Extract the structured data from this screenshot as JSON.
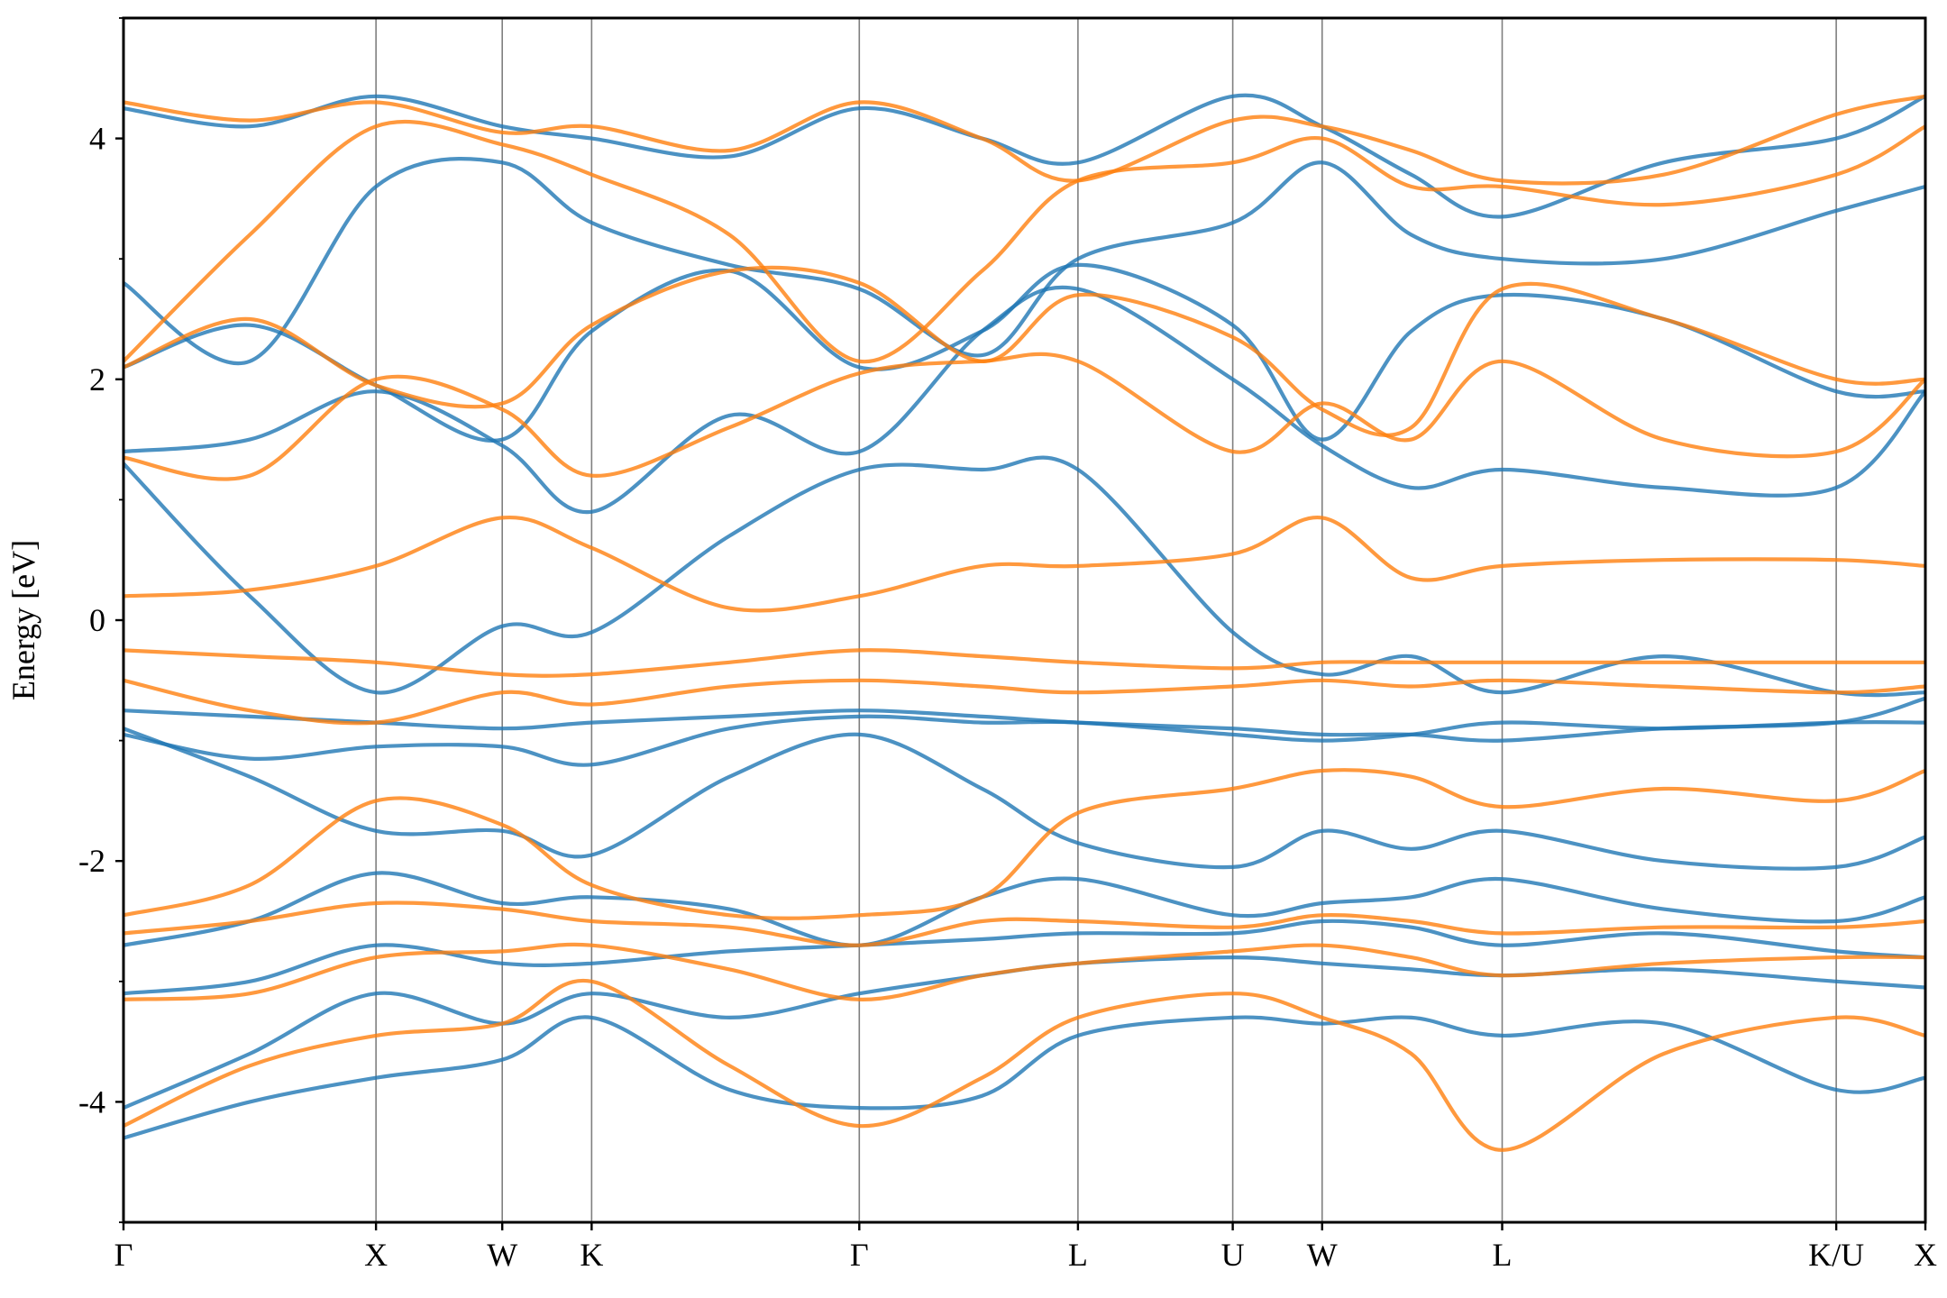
{
  "chart_data": {
    "type": "line",
    "title": "",
    "xlabel": "",
    "ylabel": "Energy [eV]",
    "ylim": [
      -5,
      5
    ],
    "yticks": [
      -4,
      -2,
      0,
      2,
      4
    ],
    "yticks_minor": [
      -5,
      -3,
      -1,
      1,
      3,
      5
    ],
    "grid": false,
    "legend": "none",
    "kpath": {
      "labels": [
        "Γ",
        "X",
        "W",
        "K",
        "Γ",
        "L",
        "U",
        "W",
        "L",
        "K/U",
        "X"
      ],
      "positions": [
        0.0,
        1.0,
        1.5,
        1.854,
        2.914,
        3.78,
        4.393,
        4.747,
        5.46,
        6.783,
        7.136
      ]
    },
    "colors": {
      "series_a": "#1f77b4",
      "series_b": "#ff7f0e",
      "kline": "#7f7f7f",
      "axis": "#000000"
    },
    "series": [
      {
        "color": "#1f77b4",
        "bands": [
          {
            "x": [
              0,
              0.5,
              1.0,
              1.5,
              1.854,
              2.4,
              2.914,
              3.4,
              3.78,
              4.393,
              4.747,
              5.1,
              5.46,
              6.1,
              6.783,
              7.136
            ],
            "y": [
              -4.3,
              -4.0,
              -3.8,
              -3.65,
              -3.3,
              -3.9,
              -4.05,
              -3.95,
              -3.45,
              -3.3,
              -3.35,
              -3.3,
              -3.45,
              -3.35,
              -3.9,
              -3.8
            ]
          },
          {
            "x": [
              0,
              0.5,
              1.0,
              1.5,
              1.854,
              2.4,
              2.914,
              3.4,
              3.78,
              4.393,
              4.747,
              5.1,
              5.46,
              6.1,
              6.783,
              7.136
            ],
            "y": [
              -4.05,
              -3.6,
              -3.1,
              -3.35,
              -3.1,
              -3.3,
              -3.1,
              -2.95,
              -2.85,
              -2.8,
              -2.85,
              -2.9,
              -2.95,
              -2.9,
              -3.0,
              -3.05
            ]
          },
          {
            "x": [
              0,
              0.5,
              1.0,
              1.5,
              1.854,
              2.4,
              2.914,
              3.4,
              3.78,
              4.393,
              4.747,
              5.1,
              5.46,
              6.1,
              6.783,
              7.136
            ],
            "y": [
              -3.1,
              -3.0,
              -2.7,
              -2.85,
              -2.85,
              -2.75,
              -2.7,
              -2.65,
              -2.6,
              -2.6,
              -2.5,
              -2.55,
              -2.7,
              -2.6,
              -2.75,
              -2.8
            ]
          },
          {
            "x": [
              0,
              0.5,
              1.0,
              1.5,
              1.854,
              2.4,
              2.914,
              3.4,
              3.78,
              4.393,
              4.747,
              5.1,
              5.46,
              6.1,
              6.783,
              7.136
            ],
            "y": [
              -2.7,
              -2.5,
              -2.1,
              -2.35,
              -2.3,
              -2.4,
              -2.7,
              -2.3,
              -2.15,
              -2.45,
              -2.35,
              -2.3,
              -2.15,
              -2.4,
              -2.5,
              -2.3
            ]
          },
          {
            "x": [
              0,
              0.5,
              1.0,
              1.5,
              1.854,
              2.4,
              2.914,
              3.4,
              3.78,
              4.393,
              4.747,
              5.1,
              5.46,
              6.1,
              6.783,
              7.136
            ],
            "y": [
              -0.9,
              -1.3,
              -1.75,
              -1.75,
              -1.95,
              -1.3,
              -0.95,
              -1.4,
              -1.85,
              -2.05,
              -1.75,
              -1.9,
              -1.75,
              -2.0,
              -2.05,
              -1.8
            ]
          },
          {
            "x": [
              0,
              0.5,
              1.0,
              1.5,
              1.854,
              2.4,
              2.914,
              3.4,
              3.78,
              4.393,
              4.747,
              5.1,
              5.46,
              6.1,
              6.783,
              7.136
            ],
            "y": [
              -0.95,
              -1.15,
              -1.05,
              -1.05,
              -1.2,
              -0.9,
              -0.8,
              -0.85,
              -0.85,
              -0.95,
              -1.0,
              -0.95,
              -0.85,
              -0.9,
              -0.85,
              -0.85
            ]
          },
          {
            "x": [
              0,
              0.5,
              1.0,
              1.5,
              1.854,
              2.4,
              2.914,
              3.4,
              3.78,
              4.393,
              4.747,
              5.1,
              5.46,
              6.1,
              6.783,
              7.136
            ],
            "y": [
              -0.75,
              -0.8,
              -0.85,
              -0.9,
              -0.85,
              -0.8,
              -0.75,
              -0.8,
              -0.85,
              -0.9,
              -0.95,
              -0.95,
              -1.0,
              -0.9,
              -0.85,
              -0.65
            ]
          },
          {
            "x": [
              0,
              0.5,
              1.0,
              1.5,
              1.854,
              2.4,
              2.914,
              3.4,
              3.78,
              4.393,
              4.747,
              5.1,
              5.46,
              6.1,
              6.783,
              7.136
            ],
            "y": [
              1.3,
              0.2,
              -0.6,
              -0.05,
              -0.1,
              0.7,
              1.25,
              1.25,
              1.25,
              -0.1,
              -0.45,
              -0.3,
              -0.6,
              -0.3,
              -0.6,
              -0.6
            ]
          },
          {
            "x": [
              0,
              0.5,
              1.0,
              1.5,
              1.854,
              2.4,
              2.914,
              3.4,
              3.78,
              4.393,
              4.747,
              5.1,
              5.46,
              6.1,
              6.783,
              7.136
            ],
            "y": [
              1.4,
              1.5,
              1.9,
              1.45,
              0.9,
              1.7,
              1.4,
              2.4,
              2.75,
              2.0,
              1.45,
              1.1,
              1.25,
              1.1,
              1.1,
              1.9
            ]
          },
          {
            "x": [
              0,
              0.5,
              1.0,
              1.5,
              1.854,
              2.4,
              2.914,
              3.4,
              3.78,
              4.393,
              4.747,
              5.1,
              5.46,
              6.1,
              6.783,
              7.136
            ],
            "y": [
              2.1,
              2.45,
              1.95,
              1.5,
              2.4,
              2.9,
              2.1,
              2.4,
              2.95,
              2.45,
              1.5,
              2.4,
              2.7,
              2.5,
              1.9,
              1.9
            ]
          },
          {
            "x": [
              0,
              0.5,
              1.0,
              1.5,
              1.854,
              2.4,
              2.914,
              3.4,
              3.78,
              4.393,
              4.747,
              5.1,
              5.46,
              6.1,
              6.783,
              7.136
            ],
            "y": [
              2.8,
              2.15,
              3.6,
              3.8,
              3.3,
              2.95,
              2.75,
              2.2,
              3.0,
              3.3,
              3.8,
              3.2,
              3.0,
              3.0,
              3.4,
              3.6
            ]
          },
          {
            "x": [
              0,
              0.5,
              1.0,
              1.5,
              1.854,
              2.4,
              2.914,
              3.4,
              3.78,
              4.393,
              4.747,
              5.1,
              5.46,
              6.1,
              6.783,
              7.136
            ],
            "y": [
              4.25,
              4.1,
              4.35,
              4.1,
              4.0,
              3.85,
              4.25,
              4.0,
              3.8,
              4.35,
              4.1,
              3.7,
              3.35,
              3.8,
              4.0,
              4.35
            ]
          }
        ]
      },
      {
        "color": "#ff7f0e",
        "bands": [
          {
            "x": [
              0,
              0.5,
              1.0,
              1.5,
              1.854,
              2.4,
              2.914,
              3.4,
              3.78,
              4.393,
              4.747,
              5.1,
              5.46,
              6.1,
              6.783,
              7.136
            ],
            "y": [
              -4.2,
              -3.7,
              -3.45,
              -3.35,
              -3.0,
              -3.7,
              -4.2,
              -3.8,
              -3.3,
              -3.1,
              -3.3,
              -3.6,
              -4.4,
              -3.6,
              -3.3,
              -3.45
            ]
          },
          {
            "x": [
              0,
              0.5,
              1.0,
              1.5,
              1.854,
              2.4,
              2.914,
              3.4,
              3.78,
              4.393,
              4.747,
              5.1,
              5.46,
              6.1,
              6.783,
              7.136
            ],
            "y": [
              -3.15,
              -3.1,
              -2.8,
              -2.75,
              -2.7,
              -2.9,
              -3.15,
              -2.95,
              -2.85,
              -2.75,
              -2.7,
              -2.8,
              -2.95,
              -2.85,
              -2.8,
              -2.8
            ]
          },
          {
            "x": [
              0,
              0.5,
              1.0,
              1.5,
              1.854,
              2.4,
              2.914,
              3.4,
              3.78,
              4.393,
              4.747,
              5.1,
              5.46,
              6.1,
              6.783,
              7.136
            ],
            "y": [
              -2.6,
              -2.5,
              -2.35,
              -2.4,
              -2.5,
              -2.55,
              -2.7,
              -2.5,
              -2.5,
              -2.55,
              -2.45,
              -2.5,
              -2.6,
              -2.55,
              -2.55,
              -2.5
            ]
          },
          {
            "x": [
              0,
              0.5,
              1.0,
              1.5,
              1.854,
              2.4,
              2.914,
              3.4,
              3.78,
              4.393,
              4.747,
              5.1,
              5.46,
              6.1,
              6.783,
              7.136
            ],
            "y": [
              -2.45,
              -2.2,
              -1.5,
              -1.7,
              -2.2,
              -2.45,
              -2.45,
              -2.3,
              -1.6,
              -1.4,
              -1.25,
              -1.3,
              -1.55,
              -1.4,
              -1.5,
              -1.25
            ]
          },
          {
            "x": [
              0,
              0.5,
              1.0,
              1.5,
              1.854,
              2.4,
              2.914,
              3.4,
              3.78,
              4.393,
              4.747,
              5.1,
              5.46,
              6.1,
              6.783,
              7.136
            ],
            "y": [
              -0.5,
              -0.75,
              -0.85,
              -0.6,
              -0.7,
              -0.55,
              -0.5,
              -0.55,
              -0.6,
              -0.55,
              -0.5,
              -0.55,
              -0.5,
              -0.55,
              -0.6,
              -0.55
            ]
          },
          {
            "x": [
              0,
              0.5,
              1.0,
              1.5,
              1.854,
              2.4,
              2.914,
              3.4,
              3.78,
              4.393,
              4.747,
              5.1,
              5.46,
              6.1,
              6.783,
              7.136
            ],
            "y": [
              -0.25,
              -0.3,
              -0.35,
              -0.45,
              -0.45,
              -0.35,
              -0.25,
              -0.3,
              -0.35,
              -0.4,
              -0.35,
              -0.35,
              -0.35,
              -0.35,
              -0.35,
              -0.35
            ]
          },
          {
            "x": [
              0,
              0.5,
              1.0,
              1.5,
              1.854,
              2.4,
              2.914,
              3.4,
              3.78,
              4.393,
              4.747,
              5.1,
              5.46,
              6.1,
              6.783,
              7.136
            ],
            "y": [
              0.2,
              0.25,
              0.45,
              0.85,
              0.6,
              0.1,
              0.2,
              0.45,
              0.45,
              0.55,
              0.85,
              0.35,
              0.45,
              0.5,
              0.5,
              0.45
            ]
          },
          {
            "x": [
              0,
              0.5,
              1.0,
              1.5,
              1.854,
              2.4,
              2.914,
              3.4,
              3.78,
              4.393,
              4.747,
              5.1,
              5.46,
              6.1,
              6.783,
              7.136
            ],
            "y": [
              1.35,
              1.2,
              2.0,
              1.75,
              1.2,
              1.6,
              2.05,
              2.15,
              2.15,
              1.4,
              1.8,
              1.5,
              2.15,
              1.5,
              1.4,
              2.0
            ]
          },
          {
            "x": [
              0,
              0.5,
              1.0,
              1.5,
              1.854,
              2.4,
              2.914,
              3.4,
              3.78,
              4.393,
              4.747,
              5.1,
              5.46,
              6.1,
              6.783,
              7.136
            ],
            "y": [
              2.1,
              2.5,
              1.95,
              1.8,
              2.45,
              2.9,
              2.8,
              2.15,
              2.7,
              2.35,
              1.75,
              1.6,
              2.75,
              2.5,
              2.0,
              2.0
            ]
          },
          {
            "x": [
              0,
              0.5,
              1.0,
              1.5,
              1.854,
              2.4,
              2.914,
              3.4,
              3.78,
              4.393,
              4.747,
              5.1,
              5.46,
              6.1,
              6.783,
              7.136
            ],
            "y": [
              2.15,
              3.2,
              4.1,
              3.95,
              3.7,
              3.2,
              2.15,
              2.9,
              3.65,
              3.8,
              4.0,
              3.6,
              3.6,
              3.45,
              3.7,
              4.1
            ]
          },
          {
            "x": [
              0,
              0.5,
              1.0,
              1.5,
              1.854,
              2.4,
              2.914,
              3.4,
              3.78,
              4.393,
              4.747,
              5.1,
              5.46,
              6.1,
              6.783,
              7.136
            ],
            "y": [
              4.3,
              4.15,
              4.3,
              4.05,
              4.1,
              3.9,
              4.3,
              4.0,
              3.65,
              4.15,
              4.1,
              3.9,
              3.65,
              3.7,
              4.2,
              4.35
            ]
          }
        ]
      }
    ]
  }
}
